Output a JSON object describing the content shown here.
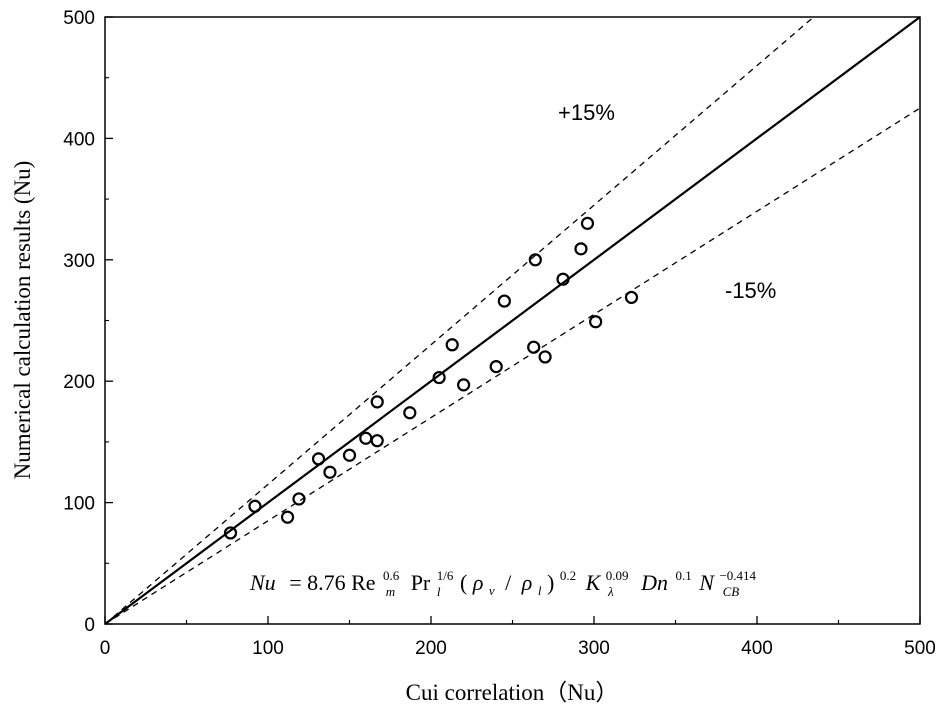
{
  "chart_data": {
    "type": "scatter",
    "title": "",
    "xlabel": "Cui correlation（Nu）",
    "ylabel": "Numerical calculation results (Nu)",
    "xlim": [
      0,
      500
    ],
    "ylim": [
      0,
      500
    ],
    "xticks": [
      0,
      100,
      200,
      300,
      400,
      500
    ],
    "yticks": [
      0,
      100,
      200,
      300,
      400,
      500
    ],
    "xtick_labels": [
      "0",
      "100",
      "200",
      "300",
      "400",
      "500"
    ],
    "ytick_labels": [
      "0",
      "100",
      "200",
      "300",
      "400",
      "500"
    ],
    "grid": false,
    "series": [
      {
        "name": "data points",
        "marker": "open-circle",
        "points": [
          {
            "x": 77,
            "y": 75
          },
          {
            "x": 92,
            "y": 97
          },
          {
            "x": 112,
            "y": 88
          },
          {
            "x": 119,
            "y": 103
          },
          {
            "x": 131,
            "y": 136
          },
          {
            "x": 138,
            "y": 125
          },
          {
            "x": 150,
            "y": 139
          },
          {
            "x": 160,
            "y": 153
          },
          {
            "x": 167,
            "y": 151
          },
          {
            "x": 167,
            "y": 183
          },
          {
            "x": 187,
            "y": 174
          },
          {
            "x": 205,
            "y": 203
          },
          {
            "x": 213,
            "y": 230
          },
          {
            "x": 220,
            "y": 197
          },
          {
            "x": 240,
            "y": 212
          },
          {
            "x": 245,
            "y": 266
          },
          {
            "x": 263,
            "y": 228
          },
          {
            "x": 264,
            "y": 300
          },
          {
            "x": 270,
            "y": 220
          },
          {
            "x": 281,
            "y": 284
          },
          {
            "x": 292,
            "y": 309
          },
          {
            "x": 296,
            "y": 330
          },
          {
            "x": 301,
            "y": 249
          },
          {
            "x": 323,
            "y": 269
          }
        ]
      }
    ],
    "reference_lines": [
      {
        "name": "y = x",
        "style": "solid",
        "slope": 1.0
      },
      {
        "name": "+15%",
        "style": "dashed",
        "slope": 1.15
      },
      {
        "name": "-15%",
        "style": "dashed",
        "slope": 0.85
      }
    ],
    "annotations": {
      "plus": "+15%",
      "minus": "-15%"
    },
    "equation": {
      "lhs": "Nu",
      "eq": "= 8.76 Re",
      "re_sup": "0.6",
      "re_sub": "m",
      "pr": "Pr",
      "pr_sup": "1/6",
      "pr_sub": "l",
      "paren_open": "(",
      "rho_v": "ρ",
      "rho_v_sub": "v",
      "slash": "/",
      "rho_l": "ρ",
      "rho_l_sub": "l",
      "paren_close": ")",
      "paren_sup": "0.2",
      "k": "K",
      "k_sup": "0.09",
      "k_sub": "λ",
      "dn": "Dn",
      "dn_sup": "0.1",
      "n": "N",
      "n_sup": "−0.414",
      "n_sub": "CB"
    }
  }
}
